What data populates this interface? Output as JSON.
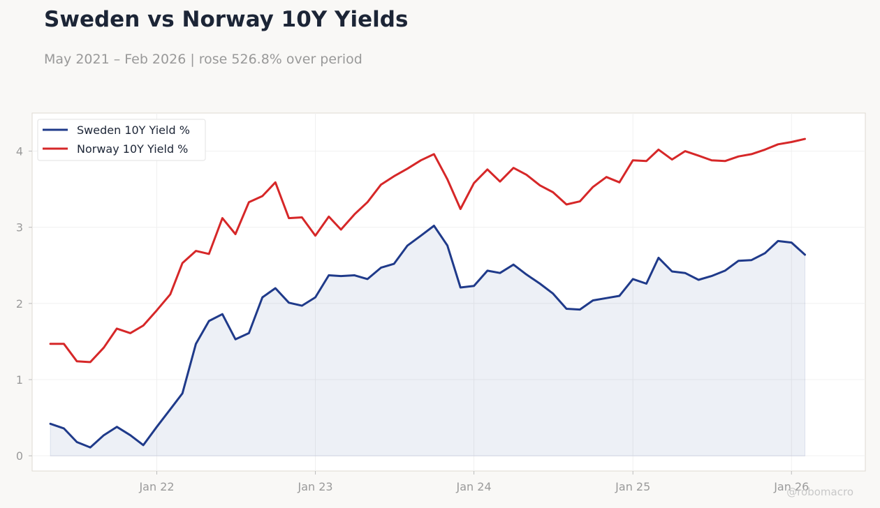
{
  "header": {
    "title": "Sweden vs Norway 10Y Yields",
    "subtitle": "May 2021 – Feb 2026 | rose 526.8% over period"
  },
  "watermark": "@robomacro",
  "colors": {
    "background": "#f9f8f6",
    "plot_background": "#ffffff",
    "sweden": "#1f3a8a",
    "norway": "#d62728",
    "sweden_fill": "#1f3a8a"
  },
  "chart_data": {
    "type": "line",
    "x": [
      "2021-05",
      "2021-06",
      "2021-07",
      "2021-08",
      "2021-09",
      "2021-10",
      "2021-11",
      "2021-12",
      "2022-01",
      "2022-02",
      "2022-03",
      "2022-04",
      "2022-05",
      "2022-06",
      "2022-07",
      "2022-08",
      "2022-09",
      "2022-10",
      "2022-11",
      "2022-12",
      "2023-01",
      "2023-02",
      "2023-03",
      "2023-04",
      "2023-05",
      "2023-06",
      "2023-07",
      "2023-08",
      "2023-09",
      "2023-10",
      "2023-11",
      "2023-12",
      "2024-01",
      "2024-02",
      "2024-03",
      "2024-04",
      "2024-05",
      "2024-06",
      "2024-07",
      "2024-08",
      "2024-09",
      "2024-10",
      "2024-11",
      "2024-12",
      "2025-01",
      "2025-02",
      "2025-03",
      "2025-04",
      "2025-05",
      "2025-06",
      "2025-07",
      "2025-08",
      "2025-09",
      "2025-10",
      "2025-11",
      "2025-12",
      "2026-01",
      "2026-02"
    ],
    "series": [
      {
        "name": "Sweden 10Y Yield %",
        "values": [
          0.42,
          0.36,
          0.18,
          0.11,
          0.27,
          0.38,
          0.27,
          0.14,
          0.38,
          0.61,
          0.82,
          1.47,
          1.77,
          1.86,
          1.53,
          1.61,
          2.08,
          2.2,
          2.01,
          1.97,
          2.08,
          2.37,
          2.36,
          2.37,
          2.32,
          2.47,
          2.52,
          2.76,
          2.89,
          3.02,
          2.76,
          2.21,
          2.23,
          2.43,
          2.4,
          2.51,
          2.38,
          2.26,
          2.13,
          1.93,
          1.92,
          2.04,
          2.07,
          2.1,
          2.32,
          2.26,
          2.6,
          2.42,
          2.4,
          2.31,
          2.36,
          2.43,
          2.56,
          2.57,
          2.66,
          2.82,
          2.8,
          2.64
        ],
        "fill": true
      },
      {
        "name": "Norway 10Y Yield %",
        "values": [
          1.47,
          1.47,
          1.24,
          1.23,
          1.42,
          1.67,
          1.61,
          1.71,
          1.91,
          2.12,
          2.53,
          2.69,
          2.65,
          3.12,
          2.91,
          3.33,
          3.41,
          3.59,
          3.12,
          3.13,
          2.89,
          3.14,
          2.97,
          3.17,
          3.33,
          3.56,
          3.67,
          3.77,
          3.88,
          3.96,
          3.63,
          3.24,
          3.58,
          3.76,
          3.6,
          3.78,
          3.69,
          3.55,
          3.46,
          3.3,
          3.34,
          3.53,
          3.66,
          3.59,
          3.88,
          3.87,
          4.02,
          3.89,
          4.0,
          3.94,
          3.88,
          3.87,
          3.93,
          3.96,
          4.02,
          4.09,
          4.12,
          4.16
        ],
        "fill": false
      }
    ],
    "x_tick_labels": [
      "Jan 22",
      "Jan 23",
      "Jan 24",
      "Jan 25",
      "Jan 26"
    ],
    "x_tick_dates": [
      "2022-01",
      "2023-01",
      "2024-01",
      "2025-01",
      "2026-01"
    ],
    "y_ticks": [
      0,
      1,
      2,
      3,
      4
    ],
    "ylim": [
      -0.2,
      4.5
    ],
    "xlim": [
      "2021-03-20",
      "2026-06-20"
    ],
    "grid": true,
    "legend_position": "top-left",
    "title": "Sweden vs Norway 10Y Yields",
    "subtitle": "May 2021 – Feb 2026 | rose 526.8% over period",
    "xlabel": "",
    "ylabel": ""
  }
}
